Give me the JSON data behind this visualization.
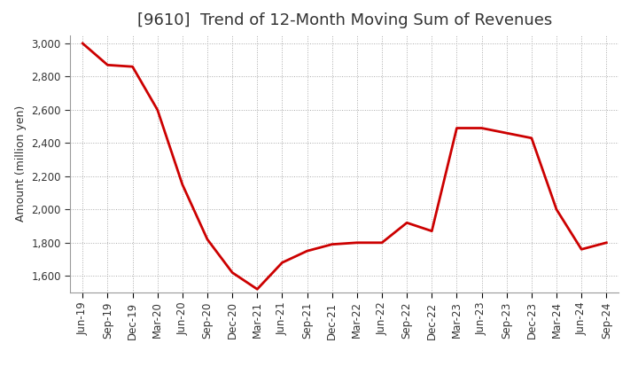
{
  "title": "[9610]  Trend of 12-Month Moving Sum of Revenues",
  "ylabel": "Amount (million yen)",
  "line_color": "#CC0000",
  "background_color": "#FFFFFF",
  "plot_bg_color": "#FFFFFF",
  "grid_color": "#AAAAAA",
  "x_labels": [
    "Jun-19",
    "Sep-19",
    "Dec-19",
    "Mar-20",
    "Jun-20",
    "Sep-20",
    "Dec-20",
    "Mar-21",
    "Jun-21",
    "Sep-21",
    "Dec-21",
    "Mar-22",
    "Jun-22",
    "Sep-22",
    "Dec-22",
    "Mar-23",
    "Jun-23",
    "Sep-23",
    "Dec-23",
    "Mar-24",
    "Jun-24",
    "Sep-24"
  ],
  "values": [
    3000,
    2870,
    2860,
    2600,
    2150,
    1820,
    1620,
    1520,
    1680,
    1750,
    1790,
    1800,
    1800,
    1920,
    1870,
    2490,
    2490,
    2460,
    2430,
    2000,
    1760,
    1800
  ],
  "ylim": [
    1500,
    3050
  ],
  "yticks": [
    1600,
    1800,
    2000,
    2200,
    2400,
    2600,
    2800,
    3000
  ],
  "line_width": 2.0,
  "title_fontsize": 13,
  "axis_label_fontsize": 9,
  "tick_fontsize": 8.5,
  "title_fontweight": "normal"
}
